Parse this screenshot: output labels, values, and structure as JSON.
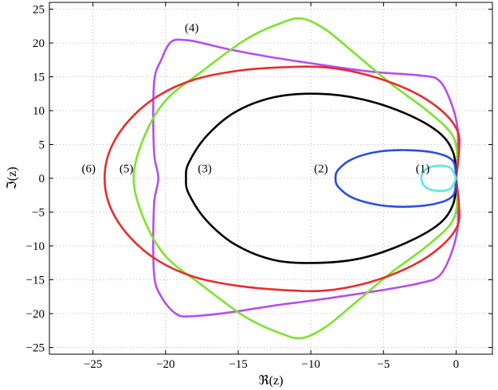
{
  "chart_data": {
    "type": "line",
    "title": "",
    "xlabel": "ℜ(z)",
    "ylabel": "ℑ(z)",
    "xlim": [
      -28,
      2.5
    ],
    "ylim": [
      -26,
      26
    ],
    "xticks": [
      -25,
      -20,
      -15,
      -10,
      -5,
      0
    ],
    "yticks": [
      -25,
      -20,
      -15,
      -10,
      -5,
      0,
      5,
      10,
      15,
      20,
      25
    ],
    "grid": true,
    "annotations": [
      {
        "text": "(1)",
        "x": -2.3,
        "y": 1.5
      },
      {
        "text": "(2)",
        "x": -9.3,
        "y": 1.5
      },
      {
        "text": "(3)",
        "x": -17.3,
        "y": 1.5
      },
      {
        "text": "(4)",
        "x": -18.2,
        "y": 22.3
      },
      {
        "text": "(5)",
        "x": -22.7,
        "y": 1.5
      },
      {
        "text": "(6)",
        "x": -25.3,
        "y": 1.5
      }
    ],
    "series": [
      {
        "label": "(1)",
        "color": "#5ce6e0",
        "points": [
          [
            0,
            0
          ],
          [
            -0.4,
            1.55
          ],
          [
            -1.3,
            1.85
          ],
          [
            -2.1,
            1.3
          ],
          [
            -2.4,
            0
          ],
          [
            -2.1,
            -1.3
          ],
          [
            -1.3,
            -1.85
          ],
          [
            -0.4,
            -1.55
          ],
          [
            0,
            0
          ]
        ]
      },
      {
        "label": "(2)",
        "color": "#2a4fdc",
        "points": [
          [
            0,
            0
          ],
          [
            -0.2,
            2.5
          ],
          [
            -1.3,
            3.7
          ],
          [
            -3.3,
            4.15
          ],
          [
            -5.3,
            3.95
          ],
          [
            -7.1,
            2.9
          ],
          [
            -8.1,
            1.3
          ],
          [
            -8.3,
            0
          ],
          [
            -8.1,
            -1.3
          ],
          [
            -7.1,
            -2.9
          ],
          [
            -5.3,
            -3.95
          ],
          [
            -3.3,
            -4.2
          ],
          [
            -1.3,
            -3.7
          ],
          [
            -0.2,
            -2.5
          ],
          [
            0,
            0
          ]
        ]
      },
      {
        "label": "(3)",
        "color": "#000000",
        "points": [
          [
            0,
            0
          ],
          [
            -0.2,
            3.8
          ],
          [
            -1.2,
            6.8
          ],
          [
            -3.5,
            9.6
          ],
          [
            -6.5,
            11.7
          ],
          [
            -9.5,
            12.5
          ],
          [
            -12.5,
            12.0
          ],
          [
            -15.2,
            9.8
          ],
          [
            -17.2,
            6.2
          ],
          [
            -18.4,
            2.3
          ],
          [
            -18.6,
            0
          ],
          [
            -18.4,
            -2.3
          ],
          [
            -17.2,
            -6.2
          ],
          [
            -15.2,
            -9.8
          ],
          [
            -12.5,
            -12.1
          ],
          [
            -9.5,
            -12.5
          ],
          [
            -6.5,
            -11.8
          ],
          [
            -3.5,
            -9.6
          ],
          [
            -1.2,
            -6.8
          ],
          [
            -0.2,
            -3.8
          ],
          [
            0,
            0
          ]
        ]
      },
      {
        "label": "(4)",
        "color": "#b44ff0",
        "points": [
          [
            0,
            0
          ],
          [
            0.1,
            4.0
          ],
          [
            0.1,
            7.5
          ],
          [
            -0.4,
            11.5
          ],
          [
            -1.2,
            14.5
          ],
          [
            -2.5,
            15.2
          ],
          [
            -6,
            15.8
          ],
          [
            -10,
            17.0
          ],
          [
            -13,
            18.0
          ],
          [
            -15.5,
            19.0
          ],
          [
            -17.5,
            20.0
          ],
          [
            -18.5,
            20.4
          ],
          [
            -19.6,
            20.2
          ],
          [
            -20.3,
            17.5
          ],
          [
            -20.8,
            14.0
          ],
          [
            -20.8,
            4.0
          ],
          [
            -20.5,
            0
          ],
          [
            -20.8,
            -4.0
          ],
          [
            -20.8,
            -14.0
          ],
          [
            -20.3,
            -17.5
          ],
          [
            -19.3,
            -20.0
          ],
          [
            -18.3,
            -20.4
          ],
          [
            -15.5,
            -19.8
          ],
          [
            -12.5,
            -18.8
          ],
          [
            -9,
            -17.8
          ],
          [
            -5,
            -16.5
          ],
          [
            -2.5,
            -15.5
          ],
          [
            -1.2,
            -14.5
          ],
          [
            -0.4,
            -11.5
          ],
          [
            0.1,
            -7.5
          ],
          [
            0.1,
            -4.0
          ],
          [
            0,
            0
          ]
        ]
      },
      {
        "label": "(5)",
        "color": "#7ae42a",
        "points": [
          [
            0,
            0
          ],
          [
            0.1,
            3.0
          ],
          [
            -0.3,
            6.5
          ],
          [
            -2.0,
            10.0
          ],
          [
            -4.5,
            14.0
          ],
          [
            -7.0,
            18.5
          ],
          [
            -9.0,
            22.0
          ],
          [
            -10.6,
            23.6
          ],
          [
            -12.0,
            23.0
          ],
          [
            -14.5,
            20.5
          ],
          [
            -17.5,
            15.8
          ],
          [
            -20.0,
            11.5
          ],
          [
            -21.5,
            6.0
          ],
          [
            -22.2,
            0
          ],
          [
            -21.5,
            -6.0
          ],
          [
            -20.0,
            -11.5
          ],
          [
            -17.5,
            -15.8
          ],
          [
            -14.5,
            -20.5
          ],
          [
            -12.0,
            -23.0
          ],
          [
            -10.6,
            -23.6
          ],
          [
            -9.0,
            -22.0
          ],
          [
            -7.0,
            -18.5
          ],
          [
            -4.5,
            -14.0
          ],
          [
            -2.0,
            -10.0
          ],
          [
            -0.3,
            -6.5
          ],
          [
            0.1,
            -3.0
          ],
          [
            0,
            0
          ]
        ]
      },
      {
        "label": "(6)",
        "color": "#e82c2c",
        "points": [
          [
            0,
            0
          ],
          [
            0.2,
            4.0
          ],
          [
            0.1,
            7.0
          ],
          [
            -1.0,
            10.0
          ],
          [
            -3.0,
            12.8
          ],
          [
            -6.0,
            15.2
          ],
          [
            -9.0,
            16.4
          ],
          [
            -12.0,
            16.4
          ],
          [
            -15.0,
            15.9
          ],
          [
            -18.0,
            14.6
          ],
          [
            -20.5,
            12.2
          ],
          [
            -22.5,
            8.6
          ],
          [
            -23.8,
            4.3
          ],
          [
            -24.2,
            0
          ],
          [
            -23.8,
            -4.3
          ],
          [
            -22.5,
            -8.6
          ],
          [
            -20.5,
            -12.2
          ],
          [
            -18.0,
            -14.6
          ],
          [
            -15.0,
            -15.9
          ],
          [
            -12.0,
            -16.5
          ],
          [
            -9.0,
            -16.6
          ],
          [
            -6.0,
            -15.4
          ],
          [
            -3.0,
            -12.9
          ],
          [
            -1.0,
            -10.0
          ],
          [
            0.1,
            -7.0
          ],
          [
            0.2,
            -4.0
          ],
          [
            0,
            0
          ]
        ]
      }
    ]
  }
}
